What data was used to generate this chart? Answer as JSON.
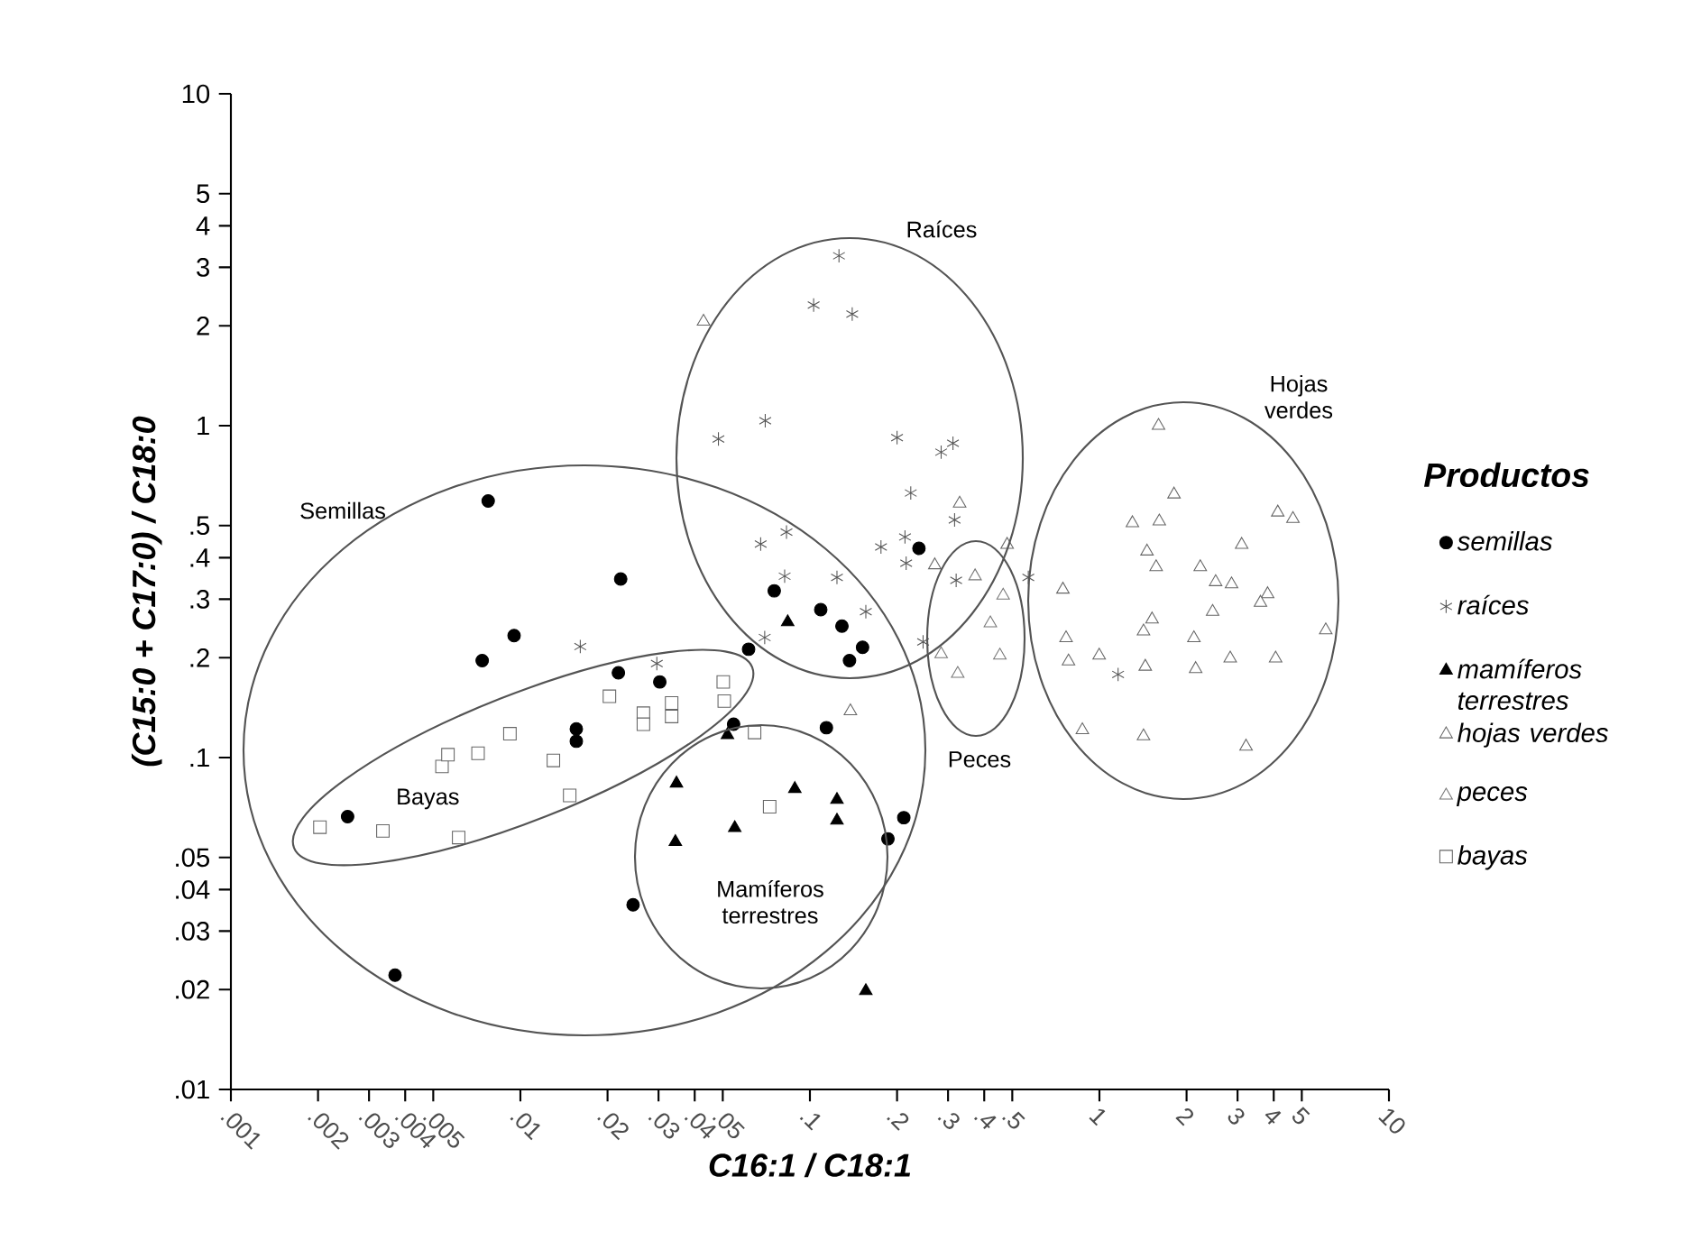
{
  "chart_data": {
    "type": "scatter",
    "xlabel": "C16:1 / C18:1",
    "ylabel": "(C15:0 + C17:0) / C18:0",
    "legend_title": "Productos",
    "legend": "right",
    "log": "xy",
    "xlim": [
      0.001,
      10
    ],
    "ylim": [
      0.01,
      10
    ],
    "xticks": [
      {
        "value": 0.001,
        "label": ".001"
      },
      {
        "value": 0.002,
        "label": ".002"
      },
      {
        "value": 0.003,
        "label": ".003"
      },
      {
        "value": 0.004,
        "label": ".004"
      },
      {
        "value": 0.005,
        "label": ".005"
      },
      {
        "value": 0.01,
        "label": ".01"
      },
      {
        "value": 0.02,
        "label": ".02"
      },
      {
        "value": 0.03,
        "label": ".03"
      },
      {
        "value": 0.04,
        "label": ".04"
      },
      {
        "value": 0.05,
        "label": ".05"
      },
      {
        "value": 0.1,
        "label": ".1"
      },
      {
        "value": 0.2,
        "label": ".2"
      },
      {
        "value": 0.3,
        "label": ".3"
      },
      {
        "value": 0.4,
        "label": ".4"
      },
      {
        "value": 0.5,
        "label": ".5"
      },
      1,
      2,
      3,
      4,
      5,
      10
    ],
    "yticks": [
      {
        "value": 0.01,
        "label": ".01"
      },
      {
        "value": 0.02,
        "label": ".02"
      },
      {
        "value": 0.03,
        "label": ".03"
      },
      {
        "value": 0.04,
        "label": ".04"
      },
      {
        "value": 0.05,
        "label": ".05"
      },
      {
        "value": 0.1,
        "label": ".1"
      },
      {
        "value": 0.2,
        "label": ".2"
      },
      {
        "value": 0.3,
        "label": ".3"
      },
      {
        "value": 0.4,
        "label": ".4"
      },
      {
        "value": 0.5,
        "label": ".5"
      },
      1,
      2,
      3,
      4,
      5,
      10
    ],
    "annotations": [
      "Semillas",
      "Bayas",
      "Mamíferos terrestres",
      "Raíces",
      "Peces",
      "Hojas verdes"
    ],
    "series": [
      {
        "name": "semillas",
        "color": "#000000",
        "marker": "circle",
        "x": [
          0.00774,
          0.0222,
          0.00951,
          0.00738,
          0.0218,
          0.0303,
          0.0614,
          0.0156,
          0.0156,
          0.0545,
          0.00253,
          0.0245,
          0.00369,
          0.0753,
          0.109,
          0.129,
          0.152,
          0.137,
          0.238,
          0.114,
          0.211,
          0.186
        ],
        "values": [
          0.593,
          0.345,
          0.233,
          0.196,
          0.18,
          0.169,
          0.212,
          0.122,
          0.112,
          0.126,
          0.0664,
          0.036,
          0.0221,
          0.318,
          0.279,
          0.249,
          0.215,
          0.196,
          0.427,
          0.123,
          0.0659,
          0.0569
        ]
      },
      {
        "name": "raíces",
        "color": "#555555",
        "marker": "cross",
        "x": [
          0.126,
          0.103,
          0.14,
          0.0701,
          0.0483,
          0.2,
          0.284,
          0.312,
          0.223,
          0.316,
          0.083,
          0.0676,
          0.176,
          0.213,
          0.215,
          0.32,
          0.0818,
          0.124,
          0.156,
          0.0698,
          0.246,
          0.568,
          0.0161,
          0.0296,
          1.16
        ],
        "values": [
          3.25,
          2.31,
          2.17,
          1.035,
          0.912,
          0.92,
          0.832,
          0.885,
          0.627,
          0.52,
          0.478,
          0.44,
          0.431,
          0.462,
          0.385,
          0.342,
          0.352,
          0.349,
          0.275,
          0.23,
          0.223,
          0.349,
          0.216,
          0.192,
          0.178
        ]
      },
      {
        "name": "mamíferos terrestres",
        "color": "#000000",
        "marker": "triangle",
        "x": [
          0.0838,
          0.0519,
          0.0346,
          0.0887,
          0.124,
          0.124,
          0.055,
          0.0343,
          0.156
        ],
        "values": [
          0.256,
          0.117,
          0.0836,
          0.0805,
          0.0746,
          0.0646,
          0.0614,
          0.0557,
          0.0198
        ]
      },
      {
        "name": "hojas verdes",
        "color": "#666666",
        "marker": "triangle",
        "x": [
          1.6,
          1.81,
          1.3,
          1.61,
          4.13,
          4.66,
          1.46,
          1.57,
          3.1,
          2.23,
          2.52,
          2.86,
          3.81,
          3.6,
          0.748,
          2.46,
          1.52,
          1.42,
          0.767,
          2.12,
          6.05,
          0.782,
          0.998,
          1.44,
          2.15,
          2.83,
          4.06,
          0.873,
          1.42,
          3.21,
          0.0429,
          0.329,
          0.138,
          0.27,
          0.48
        ],
        "values": [
          1.0,
          0.621,
          0.509,
          0.515,
          0.548,
          0.524,
          0.418,
          0.375,
          0.438,
          0.375,
          0.338,
          0.333,
          0.311,
          0.293,
          0.321,
          0.275,
          0.261,
          0.24,
          0.229,
          0.229,
          0.242,
          0.195,
          0.203,
          0.188,
          0.185,
          0.199,
          0.199,
          0.121,
          0.116,
          0.108,
          2.06,
          0.583,
          0.138,
          0.38,
          0.438
        ]
      },
      {
        "name": "peces",
        "color": "#777777",
        "marker": "triangle",
        "x": [
          0.372,
          0.465,
          0.42,
          0.453,
          0.324,
          0.284
        ],
        "values": [
          0.352,
          0.308,
          0.254,
          0.203,
          0.179,
          0.205
        ]
      },
      {
        "name": "bayas",
        "color": "#666666",
        "marker": "square",
        "x": [
          0.00203,
          0.00335,
          0.00612,
          0.00536,
          0.00562,
          0.00714,
          0.0092,
          0.013,
          0.0148,
          0.0203,
          0.0266,
          0.0266,
          0.0333,
          0.0333,
          0.0502,
          0.0506,
          0.0644,
          0.0726
        ],
        "values": [
          0.0617,
          0.0601,
          0.0574,
          0.094,
          0.102,
          0.103,
          0.118,
          0.098,
          0.0769,
          0.153,
          0.136,
          0.126,
          0.146,
          0.133,
          0.169,
          0.148,
          0.119,
          0.0711
        ]
      }
    ]
  }
}
